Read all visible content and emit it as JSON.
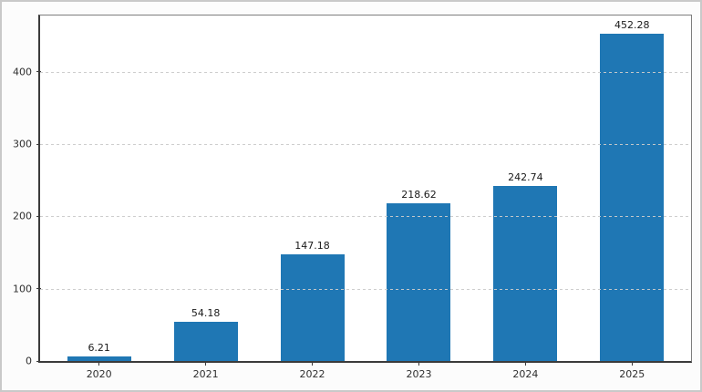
{
  "figure": {
    "background": "#fcfcfc",
    "frame_border_color": "#c9c9c9",
    "plot_background": "#ffffff"
  },
  "chart_data": {
    "type": "bar",
    "title": "",
    "xlabel": "",
    "ylabel": "",
    "categories": [
      "2020",
      "2021",
      "2022",
      "2023",
      "2024",
      "2025"
    ],
    "values": [
      6.21,
      54.18,
      147.18,
      218.62,
      242.74,
      452.28
    ],
    "value_labels": [
      "6.21",
      "54.18",
      "147.18",
      "218.62",
      "242.74",
      "452.28"
    ],
    "yticks": [
      0,
      100,
      200,
      300,
      400
    ],
    "ytick_labels": [
      "0",
      "100",
      "200",
      "300",
      "400"
    ],
    "ylim": [
      0,
      478
    ],
    "grid": "horizontal-dashed-over-bars",
    "legend": "none",
    "bar_color": "#1f77b4",
    "grid_color": "#cbcbcb",
    "axis_color": "#3b3b3b",
    "tick_label_color": "#2e2e2e",
    "value_label_color": "#1a1a1a"
  }
}
